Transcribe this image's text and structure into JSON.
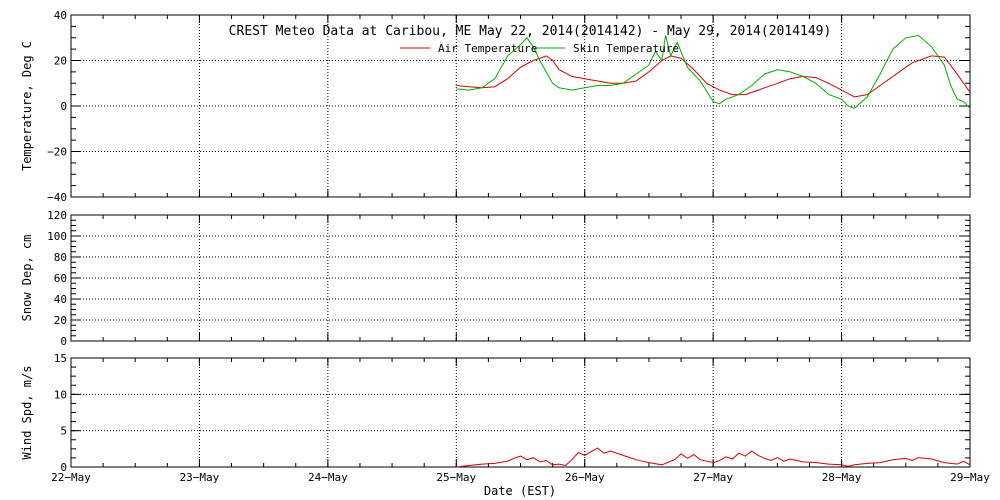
{
  "chart_data": [
    {
      "type": "line",
      "title": "CREST Meteo Data at Caribou, ME   May 22, 2014(2014142) - May 29, 2014(2014149)",
      "xlabel": "",
      "ylabel": "Temperature, Deg C",
      "ylim": [
        -40,
        40
      ],
      "yticks": [
        "40",
        "20",
        "0",
        "−20",
        "−40"
      ],
      "grid": true,
      "legend_position": "top-center",
      "x_days_range": [
        0,
        7
      ],
      "series": [
        {
          "name": "Air Temperature",
          "color": "#d40000",
          "points": [
            [
              3.0,
              9
            ],
            [
              3.1,
              8.5
            ],
            [
              3.2,
              8
            ],
            [
              3.3,
              8.5
            ],
            [
              3.4,
              12
            ],
            [
              3.5,
              17
            ],
            [
              3.6,
              20
            ],
            [
              3.7,
              22
            ],
            [
              3.75,
              20
            ],
            [
              3.8,
              16
            ],
            [
              3.9,
              13
            ],
            [
              4.0,
              12
            ],
            [
              4.1,
              11
            ],
            [
              4.2,
              10
            ],
            [
              4.3,
              10
            ],
            [
              4.4,
              11
            ],
            [
              4.5,
              15
            ],
            [
              4.6,
              20
            ],
            [
              4.67,
              22
            ],
            [
              4.75,
              21
            ],
            [
              4.85,
              16
            ],
            [
              4.95,
              10
            ],
            [
              5.05,
              7
            ],
            [
              5.15,
              5
            ],
            [
              5.25,
              5
            ],
            [
              5.35,
              7
            ],
            [
              5.5,
              10
            ],
            [
              5.6,
              12
            ],
            [
              5.7,
              13
            ],
            [
              5.8,
              12.5
            ],
            [
              5.9,
              10
            ],
            [
              6.0,
              7
            ],
            [
              6.1,
              4
            ],
            [
              6.2,
              5
            ],
            [
              6.3,
              9
            ],
            [
              6.45,
              15
            ],
            [
              6.55,
              19
            ],
            [
              6.7,
              22
            ],
            [
              6.8,
              21.5
            ],
            [
              6.9,
              14
            ],
            [
              7.0,
              6
            ]
          ]
        },
        {
          "name": "Skin Temperature",
          "color": "#00b000",
          "points": [
            [
              3.0,
              7.5
            ],
            [
              3.1,
              7
            ],
            [
              3.2,
              8
            ],
            [
              3.3,
              12
            ],
            [
              3.4,
              22
            ],
            [
              3.5,
              27
            ],
            [
              3.55,
              30
            ],
            [
              3.6,
              26
            ],
            [
              3.65,
              20
            ],
            [
              3.7,
              15
            ],
            [
              3.75,
              10
            ],
            [
              3.8,
              8
            ],
            [
              3.9,
              7
            ],
            [
              4.0,
              8
            ],
            [
              4.1,
              9
            ],
            [
              4.2,
              9
            ],
            [
              4.3,
              10
            ],
            [
              4.4,
              14
            ],
            [
              4.5,
              18
            ],
            [
              4.55,
              24
            ],
            [
              4.6,
              20
            ],
            [
              4.63,
              31
            ],
            [
              4.67,
              22
            ],
            [
              4.72,
              28
            ],
            [
              4.8,
              17
            ],
            [
              4.9,
              11
            ],
            [
              5.0,
              2
            ],
            [
              5.05,
              1
            ],
            [
              5.1,
              3
            ],
            [
              5.2,
              5
            ],
            [
              5.3,
              9
            ],
            [
              5.4,
              14
            ],
            [
              5.5,
              16
            ],
            [
              5.6,
              15
            ],
            [
              5.7,
              13
            ],
            [
              5.8,
              10
            ],
            [
              5.9,
              5
            ],
            [
              6.0,
              3
            ],
            [
              6.05,
              0
            ],
            [
              6.1,
              -1
            ],
            [
              6.2,
              4
            ],
            [
              6.3,
              14
            ],
            [
              6.4,
              25
            ],
            [
              6.5,
              30
            ],
            [
              6.6,
              31
            ],
            [
              6.7,
              26
            ],
            [
              6.8,
              18
            ],
            [
              6.85,
              9
            ],
            [
              6.9,
              3
            ],
            [
              6.95,
              2
            ],
            [
              7.0,
              -1
            ]
          ]
        }
      ],
      "legend": [
        "Air Temperature",
        "Skin Temperature"
      ]
    },
    {
      "type": "line",
      "title": "",
      "xlabel": "",
      "ylabel": "Snow Dep, cm",
      "ylim": [
        0,
        120
      ],
      "yticks": [
        "120",
        "100",
        "80",
        "60",
        "40",
        "20",
        "0"
      ],
      "grid": true,
      "series": []
    },
    {
      "type": "line",
      "title": "",
      "xlabel": "Date (EST)",
      "ylabel": "Wind Spd, m/s",
      "ylim": [
        0,
        15
      ],
      "yticks": [
        "15",
        "10",
        "5",
        "0"
      ],
      "grid": true,
      "x_categories": [
        "22−May",
        "23−May",
        "24−May",
        "25−May",
        "26−May",
        "27−May",
        "28−May",
        "29−May"
      ],
      "series": [
        {
          "name": "",
          "color": "#d40000",
          "points": [
            [
              3.0,
              0
            ],
            [
              3.1,
              0.2
            ],
            [
              3.2,
              0.4
            ],
            [
              3.3,
              0.5
            ],
            [
              3.4,
              0.8
            ],
            [
              3.45,
              1.2
            ],
            [
              3.5,
              1.5
            ],
            [
              3.55,
              1.0
            ],
            [
              3.6,
              1.3
            ],
            [
              3.65,
              0.7
            ],
            [
              3.7,
              0.9
            ],
            [
              3.75,
              0.3
            ],
            [
              3.8,
              0.4
            ],
            [
              3.85,
              0.2
            ],
            [
              3.9,
              1.0
            ],
            [
              3.95,
              2.0
            ],
            [
              4.0,
              1.6
            ],
            [
              4.05,
              2.1
            ],
            [
              4.1,
              2.6
            ],
            [
              4.15,
              1.9
            ],
            [
              4.2,
              2.2
            ],
            [
              4.3,
              1.6
            ],
            [
              4.4,
              1.0
            ],
            [
              4.5,
              0.6
            ],
            [
              4.6,
              0.3
            ],
            [
              4.7,
              1.0
            ],
            [
              4.75,
              1.8
            ],
            [
              4.8,
              1.2
            ],
            [
              4.85,
              1.7
            ],
            [
              4.9,
              1.0
            ],
            [
              4.95,
              0.8
            ],
            [
              5.0,
              0.6
            ],
            [
              5.05,
              0.9
            ],
            [
              5.1,
              1.4
            ],
            [
              5.15,
              1.1
            ],
            [
              5.2,
              1.9
            ],
            [
              5.25,
              1.5
            ],
            [
              5.3,
              2.2
            ],
            [
              5.35,
              1.6
            ],
            [
              5.4,
              1.2
            ],
            [
              5.45,
              0.9
            ],
            [
              5.5,
              1.3
            ],
            [
              5.55,
              0.8
            ],
            [
              5.6,
              1.1
            ],
            [
              5.7,
              0.7
            ],
            [
              5.8,
              0.6
            ],
            [
              5.9,
              0.4
            ],
            [
              6.0,
              0.3
            ],
            [
              6.05,
              0.1
            ],
            [
              6.1,
              0.3
            ],
            [
              6.2,
              0.5
            ],
            [
              6.3,
              0.6
            ],
            [
              6.4,
              1.0
            ],
            [
              6.5,
              1.2
            ],
            [
              6.55,
              0.9
            ],
            [
              6.6,
              1.3
            ],
            [
              6.7,
              1.1
            ],
            [
              6.8,
              0.6
            ],
            [
              6.9,
              0.4
            ],
            [
              6.95,
              0.8
            ],
            [
              7.0,
              0.3
            ]
          ]
        }
      ]
    }
  ]
}
